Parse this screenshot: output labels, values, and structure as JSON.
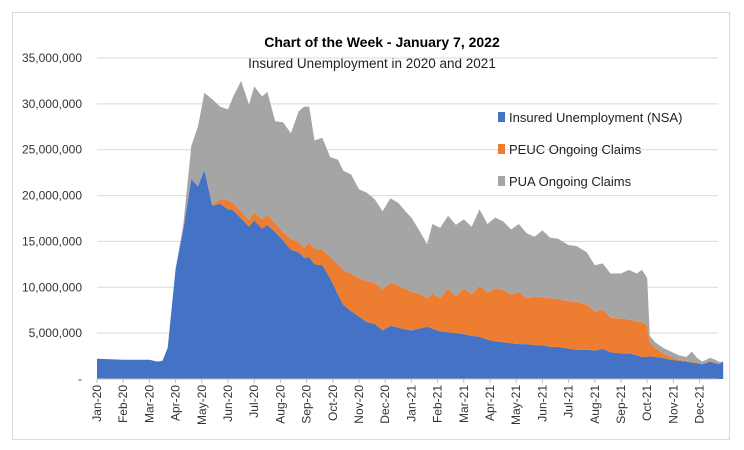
{
  "chart_data": {
    "type": "area",
    "stacked": true,
    "title": "Chart of the Week - January 7, 2022",
    "subtitle": "Insured Unemployment in 2020 and 2021",
    "xlabel": "",
    "ylabel": "",
    "ylim": [
      0,
      35000000
    ],
    "yticks": [
      0,
      5000000,
      10000000,
      15000000,
      20000000,
      25000000,
      30000000,
      35000000
    ],
    "ytick_labels": [
      "-",
      "5,000,000",
      "10,000,000",
      "15,000,000",
      "20,000,000",
      "25,000,000",
      "30,000,000",
      "35,000,000"
    ],
    "xtick_labels": [
      "Jan-20",
      "Feb-20",
      "Mar-20",
      "Apr-20",
      "May-20",
      "Jun-20",
      "Jul-20",
      "Aug-20",
      "Sep-20",
      "Oct-20",
      "Nov-20",
      "Dec-20",
      "Jan-21",
      "Feb-21",
      "Mar-21",
      "Apr-21",
      "May-21",
      "Jun-21",
      "Jul-21",
      "Aug-21",
      "Sep-21",
      "Oct-21",
      "Nov-21",
      "Dec-21"
    ],
    "x_months_from_jan20": [
      0,
      0.5,
      1,
      1.5,
      2,
      2.3,
      2.5,
      2.7,
      3.0,
      3.3,
      3.6,
      3.85,
      4.1,
      4.4,
      4.7,
      5.0,
      5.2,
      5.5,
      5.8,
      6.0,
      6.3,
      6.5,
      6.8,
      7.1,
      7.4,
      7.7,
      7.9,
      8.1,
      8.3,
      8.6,
      8.9,
      9.2,
      9.4,
      9.7,
      10.0,
      10.3,
      10.6,
      10.9,
      11.2,
      11.5,
      11.8,
      12.0,
      12.3,
      12.6,
      12.8,
      13.1,
      13.4,
      13.7,
      14.0,
      14.3,
      14.6,
      14.9,
      15.2,
      15.5,
      15.8,
      16.1,
      16.4,
      16.7,
      17.0,
      17.3,
      17.6,
      18.0,
      18.3,
      18.7,
      19.0,
      19.3,
      19.6,
      20.0,
      20.3,
      20.6,
      20.8,
      21.0,
      21.1,
      21.3,
      21.6,
      21.9,
      22.2,
      22.5,
      22.7,
      22.9,
      23.1,
      23.4,
      23.6,
      23.75,
      23.9
    ],
    "legend_position": "right",
    "grid": true,
    "series": [
      {
        "name": "Insured Unemployment (NSA)",
        "color": "#4472c4",
        "values": [
          2200000.0,
          2150000.0,
          2100000.0,
          2100000.0,
          2100000.0,
          1900000.0,
          2000000.0,
          3400000.0,
          12000000.0,
          16400000.0,
          21800000.0,
          21000000.0,
          22800000.0,
          18900000.0,
          19100000.0,
          18500000.0,
          18400000.0,
          17500000.0,
          16600000.0,
          17300000.0,
          16400000.0,
          16800000.0,
          16000000.0,
          15100000.0,
          14100000.0,
          13800000.0,
          13200000.0,
          13300000.0,
          12500000.0,
          12400000.0,
          11000000.0,
          9200000.0,
          8100000.0,
          7400000.0,
          6800000.0,
          6200000.0,
          6000000.0,
          5300000.0,
          5800000.0,
          5600000.0,
          5400000.0,
          5300000.0,
          5500000.0,
          5700000.0,
          5500000.0,
          5200000.0,
          5100000.0,
          5000000.0,
          4900000.0,
          4700000.0,
          4600000.0,
          4300000.0,
          4100000.0,
          4000000.0,
          3900000.0,
          3800000.0,
          3800000.0,
          3700000.0,
          3700000.0,
          3500000.0,
          3500000.0,
          3300000.0,
          3200000.0,
          3200000.0,
          3100000.0,
          3300000.0,
          2900000.0,
          2800000.0,
          2800000.0,
          2600000.0,
          2400000.0,
          2400000.0,
          2500000.0,
          2400000.0,
          2300000.0,
          2100000.0,
          2000000.0,
          1900000.0,
          1800000.0,
          1700000.0,
          1600000.0,
          1900000.0,
          1700000.0,
          1650000.0,
          1900000.0
        ]
      },
      {
        "name": "PEUC Ongoing Claims",
        "color": "#ed7d31",
        "values": [
          0,
          0,
          0,
          0,
          0,
          0,
          0,
          0,
          0,
          0,
          0,
          0,
          0,
          100000.0,
          500000.0,
          1000000.0,
          800000.0,
          800000.0,
          700000.0,
          900000.0,
          1000000.0,
          1100000.0,
          1000000.0,
          900000.0,
          1200000.0,
          1100000.0,
          1100000.0,
          1600000.0,
          1700000.0,
          1700000.0,
          2300000.0,
          3300000.0,
          3800000.0,
          4100000.0,
          4200000.0,
          4500000.0,
          4500000.0,
          4500000.0,
          4700000.0,
          4600000.0,
          4400000.0,
          4200000.0,
          3800000.0,
          3100000.0,
          3800000.0,
          3600000.0,
          4800000.0,
          4000000.0,
          5000000.0,
          4500000.0,
          5600000.0,
          5100000.0,
          5800000.0,
          5700000.0,
          5300000.0,
          5700000.0,
          5000000.0,
          5300000.0,
          5200000.0,
          5300000.0,
          5200000.0,
          5200000.0,
          5200000.0,
          4900000.0,
          4200000.0,
          4300000.0,
          3800000.0,
          3800000.0,
          3700000.0,
          3700000.0,
          3800000.0,
          3400000.0,
          1500000.0,
          1000000.0,
          500000.0,
          300000.0,
          100000.0,
          100000.0,
          100000.0,
          100000.0,
          0,
          100000.0,
          100000.0,
          0,
          0
        ]
      },
      {
        "name": "PUA Ongoing Claims",
        "color": "#a5a5a5",
        "values": [
          0,
          0,
          0,
          0,
          0,
          0,
          0,
          0,
          0,
          600000.0,
          3600000.0,
          6500000.0,
          8400000.0,
          11500000.0,
          10100000.0,
          9900000.0,
          11600000.0,
          14200000.0,
          12600000.0,
          13700000.0,
          13400000.0,
          13400000.0,
          11100000.0,
          12000000.0,
          11500000.0,
          14300000.0,
          15400000.0,
          14800000.0,
          11800000.0,
          12200000.0,
          10900000.0,
          11400000.0,
          10800000.0,
          10800000.0,
          9700000.0,
          9600000.0,
          9100000.0,
          8500000.0,
          9200000.0,
          9000000.0,
          8400000.0,
          8100000.0,
          6900000.0,
          5900000.0,
          7600000.0,
          7700000.0,
          7900000.0,
          7800000.0,
          7500000.0,
          7400000.0,
          8300000.0,
          7500000.0,
          7700000.0,
          7500000.0,
          7100000.0,
          7400000.0,
          7100000.0,
          6500000.0,
          7300000.0,
          6600000.0,
          6600000.0,
          6100000.0,
          6100000.0,
          5700000.0,
          5100000.0,
          5000000.0,
          4800000.0,
          4900000.0,
          5400000.0,
          5200000.0,
          5700000.0,
          5200000.0,
          700000.0,
          600000.0,
          600000.0,
          600000.0,
          500000.0,
          400000.0,
          1100000.0,
          500000.0,
          300000.0,
          300000.0,
          300000.0,
          200000.0,
          0
        ]
      }
    ]
  }
}
